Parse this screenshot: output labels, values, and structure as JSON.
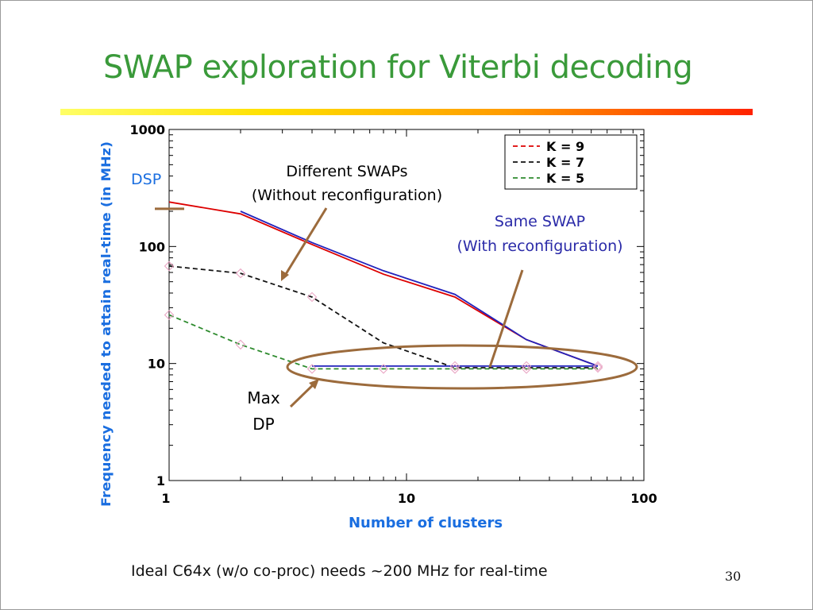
{
  "slide": {
    "title": "SWAP exploration for Viterbi decoding",
    "footer_note": "Ideal C64x (w/o co-proc) needs ~200 MHz for real-time",
    "page_number": "30"
  },
  "chart_data": {
    "type": "line",
    "xscale": "log",
    "yscale": "log",
    "xlabel": "Number of clusters",
    "ylabel": "Frequency needed to attain real-time (in MHz)",
    "xlim": [
      1,
      100
    ],
    "ylim": [
      1,
      1000
    ],
    "x_ticks": [
      "1",
      "10",
      "100"
    ],
    "y_ticks": [
      "1",
      "10",
      "100",
      "1000"
    ],
    "legend_position": "top-right",
    "series": [
      {
        "name": "K = 9",
        "color": "#dd0000",
        "dash": "solid",
        "points": [
          [
            1,
            240
          ],
          [
            2,
            190
          ],
          [
            4,
            104
          ],
          [
            8,
            58
          ],
          [
            16,
            37
          ],
          [
            32,
            16
          ],
          [
            64,
            9.5
          ]
        ]
      },
      {
        "name": "K = 7",
        "color": "#111111",
        "dash": "dashed",
        "points": [
          [
            1,
            68
          ],
          [
            2,
            59
          ],
          [
            4,
            37
          ],
          [
            8,
            15
          ],
          [
            16,
            9.2
          ],
          [
            32,
            9.2
          ],
          [
            64,
            9.2
          ]
        ]
      },
      {
        "name": "K = 5",
        "color": "#2e8b2e",
        "dash": "dashed",
        "points": [
          [
            1,
            26
          ],
          [
            2,
            14.5
          ],
          [
            4,
            9
          ],
          [
            8,
            9
          ],
          [
            16,
            9
          ],
          [
            32,
            9
          ],
          [
            64,
            9
          ]
        ]
      },
      {
        "name": "",
        "color": "#2222bb",
        "dash": "solid",
        "points": [
          [
            2,
            200
          ],
          [
            4,
            108
          ],
          [
            8,
            62
          ],
          [
            16,
            39
          ],
          [
            32,
            16
          ],
          [
            64,
            9.5
          ]
        ]
      },
      {
        "name": "",
        "color": "#2222bb",
        "dash": "solid",
        "points": [
          [
            4,
            9.5
          ],
          [
            8,
            9.5
          ],
          [
            16,
            9.5
          ],
          [
            32,
            9.5
          ],
          [
            64,
            9.5
          ]
        ]
      }
    ],
    "marker_points": [
      [
        1,
        68
      ],
      [
        1,
        26
      ],
      [
        2,
        59
      ],
      [
        2,
        14.5
      ],
      [
        4,
        37
      ],
      [
        4,
        9
      ],
      [
        8,
        9
      ],
      [
        16,
        9
      ],
      [
        16,
        9.5
      ],
      [
        32,
        9
      ],
      [
        32,
        9.5
      ],
      [
        64,
        9.2
      ],
      [
        64,
        9.5
      ]
    ],
    "annotations": {
      "dsp_label": "DSP",
      "dsp_value": 210,
      "different_swaps": [
        "Different SWAPs",
        "(Without reconfiguration)"
      ],
      "same_swap": [
        "Same SWAP",
        "(With reconfiguration)"
      ],
      "max_dp": [
        "Max",
        "DP"
      ]
    }
  }
}
